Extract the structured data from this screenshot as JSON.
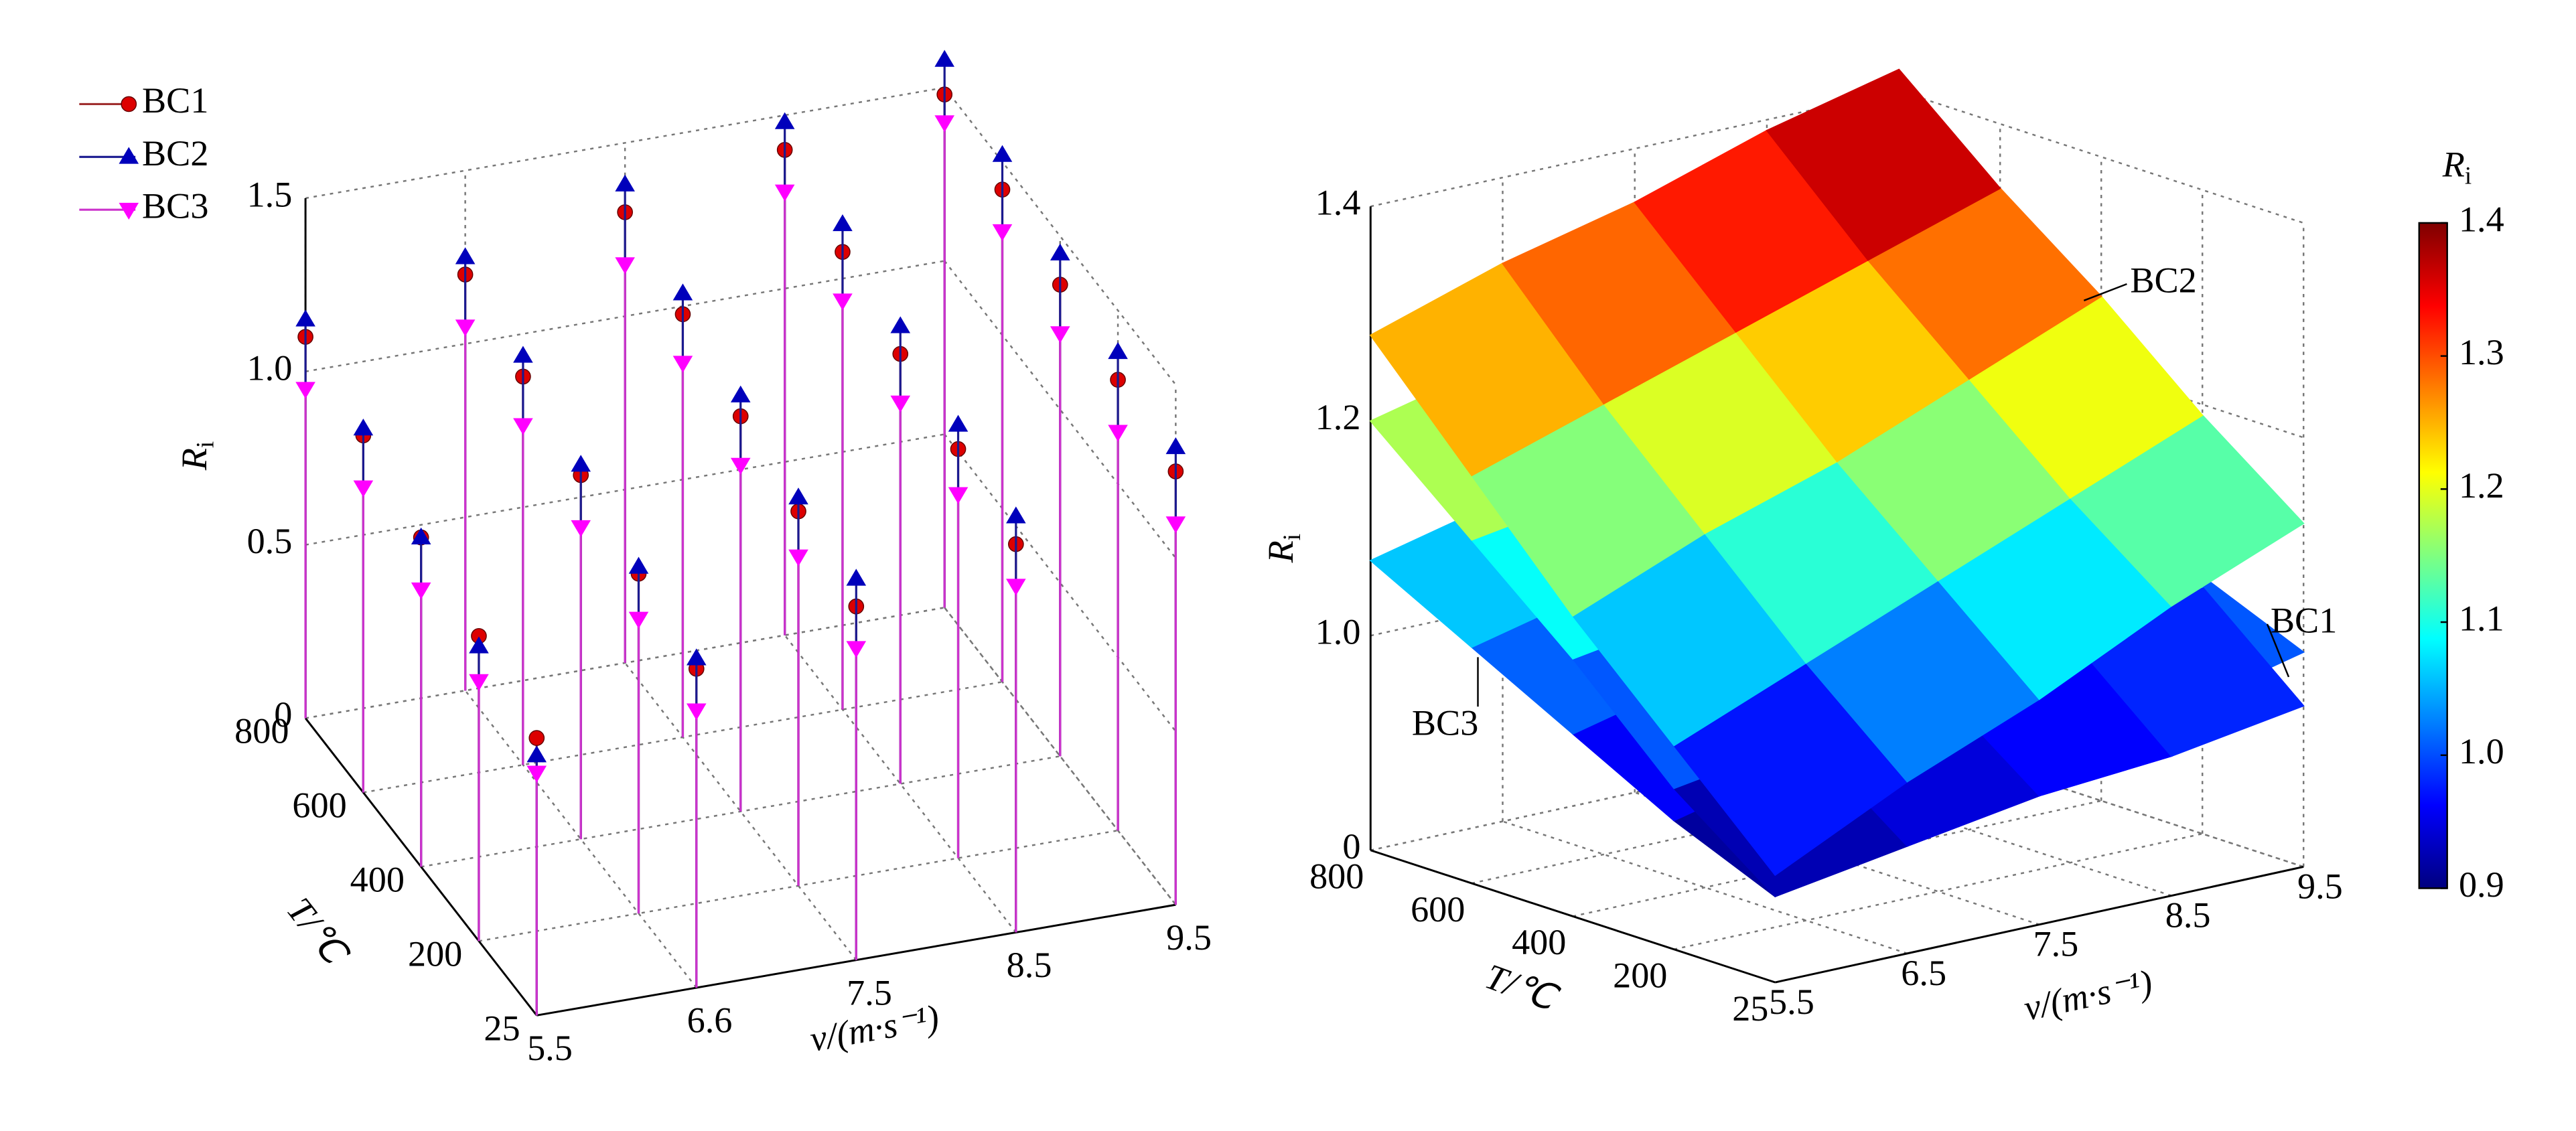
{
  "chart_data": [
    {
      "type": "stem3d",
      "zlabel": {
        "main": "R",
        "sub": "i"
      },
      "xlabel": "v/(m·s⁻¹)",
      "ylabel": "T/℃",
      "x": [
        5.5,
        6.6,
        7.5,
        8.5,
        9.5
      ],
      "y": [
        25,
        200,
        400,
        600,
        800
      ],
      "zlim": [
        0,
        1.5
      ],
      "zticks": [
        0,
        0.5,
        {
          "value": 1,
          "label": "1.0"
        },
        1.5
      ],
      "series": [
        {
          "name": "BC1",
          "color": "#dd0000",
          "stem_color": "#a03030",
          "marker": "circle",
          "values": [
            [
              0.8,
              0.92,
              1.02,
              1.12,
              1.25
            ],
            [
              0.88,
              0.98,
              1.08,
              1.18,
              1.3
            ],
            [
              0.95,
              1.05,
              1.14,
              1.24,
              1.36
            ],
            [
              1.03,
              1.12,
              1.22,
              1.32,
              1.42
            ],
            [
              1.1,
              1.2,
              1.3,
              1.4,
              1.48
            ]
          ]
        },
        {
          "name": "BC2",
          "color": "#0000bb",
          "stem_color": "#1a1a90",
          "marker": "triangle-up",
          "values": [
            [
              0.75,
              0.95,
              1.1,
              1.2,
              1.32
            ],
            [
              0.85,
              1.0,
              1.12,
              1.25,
              1.38
            ],
            [
              0.95,
              1.08,
              1.2,
              1.32,
              1.45
            ],
            [
              1.05,
              1.18,
              1.28,
              1.4,
              1.52
            ],
            [
              1.15,
              1.25,
              1.38,
              1.48,
              1.58
            ]
          ]
        },
        {
          "name": "BC3",
          "color": "#ff00ff",
          "stem_color": "#cc33cc",
          "marker": "triangle-down",
          "values": [
            [
              0.7,
              0.8,
              0.9,
              1.0,
              1.1
            ],
            [
              0.75,
              0.85,
              0.95,
              1.05,
              1.15
            ],
            [
              0.8,
              0.9,
              1.0,
              1.1,
              1.22
            ],
            [
              0.88,
              0.98,
              1.08,
              1.18,
              1.3
            ],
            [
              0.95,
              1.05,
              1.15,
              1.28,
              1.4
            ]
          ]
        }
      ]
    },
    {
      "type": "surface",
      "zlabel": {
        "main": "R",
        "sub": "i"
      },
      "xlabel": "v/(m·s⁻¹)",
      "ylabel": "T/℃",
      "x": [
        5.5,
        6.5,
        7.5,
        8.5,
        9.5
      ],
      "y": [
        25,
        200,
        400,
        600,
        800
      ],
      "zlim": [
        0,
        1.4
      ],
      "zbreak": [
        0,
        0.8
      ],
      "zticks": [
        0,
        {
          "value": 1,
          "label": "1.0"
        },
        1.2,
        1.4
      ],
      "colorbar": {
        "title": {
          "main": "R",
          "sub": "i"
        },
        "lim": [
          0.9,
          1.4
        ],
        "ticks": [
          0.9,
          {
            "value": 1,
            "label": "1.0"
          },
          1.1,
          1.2,
          1.3,
          1.4
        ]
      },
      "series": [
        {
          "name": "BC3",
          "values": [
            [
              0.88,
              0.91,
              0.94,
              0.97,
              1.0
            ],
            [
              0.92,
              0.95,
              0.98,
              1.01,
              1.04
            ],
            [
              0.97,
              1.0,
              1.03,
              1.06,
              1.09
            ],
            [
              1.02,
              1.05,
              1.08,
              1.11,
              1.14
            ],
            [
              1.07,
              1.1,
              1.13,
              1.16,
              1.19
            ]
          ]
        },
        {
          "name": "BC1",
          "values": [
            [
              0.88,
              0.9,
              0.92,
              0.93,
              0.95
            ],
            [
              0.95,
              0.97,
              0.99,
              1.01,
              1.03
            ],
            [
              1.04,
              1.06,
              1.08,
              1.1,
              1.12
            ],
            [
              1.12,
              1.14,
              1.16,
              1.19,
              1.21
            ],
            [
              1.2,
              1.23,
              1.25,
              1.28,
              1.3
            ]
          ]
        },
        {
          "name": "BC2",
          "values": [
            [
              0.9,
              0.96,
              1.01,
              1.07,
              1.12
            ],
            [
              0.99,
              1.04,
              1.09,
              1.14,
              1.19
            ],
            [
              1.08,
              1.13,
              1.17,
              1.22,
              1.27
            ],
            [
              1.18,
              1.22,
              1.26,
              1.3,
              1.34
            ],
            [
              1.28,
              1.32,
              1.35,
              1.39,
              1.42
            ]
          ]
        }
      ],
      "annotations": [
        "BC2",
        "BC1",
        "BC3"
      ]
    }
  ]
}
